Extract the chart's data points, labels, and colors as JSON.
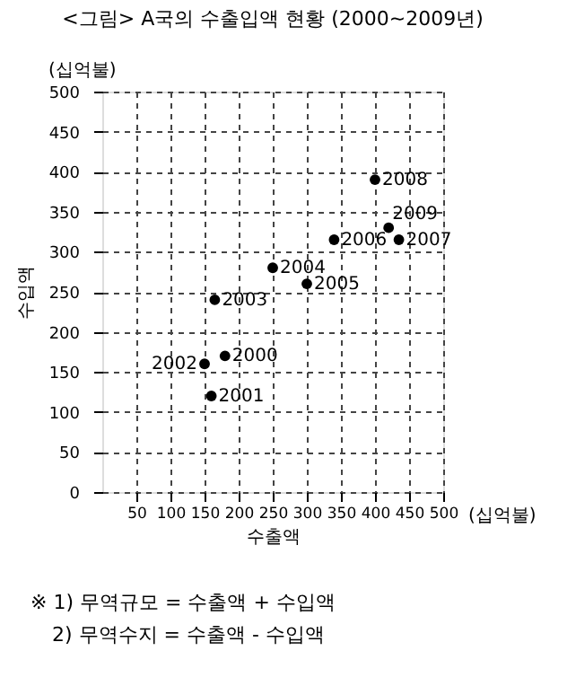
{
  "chart_data": {
    "type": "scatter",
    "title": "<그림> A국의 수출입액 현황 (2000~2009년)",
    "xlabel": "수출액",
    "ylabel": "수입액",
    "x": [
      180,
      160,
      150,
      165,
      250,
      300,
      340,
      435,
      400,
      420
    ],
    "series": [
      {
        "color": "#000000",
        "values": [
          170,
          120,
          160,
          240,
          280,
          260,
          315,
          315,
          390,
          330
        ]
      }
    ],
    "xlim": [
      0,
      500
    ],
    "xticks": [
      50,
      100,
      150,
      200,
      250,
      300,
      350,
      400,
      450,
      500
    ],
    "ylim": [
      0,
      500
    ],
    "yticks": [
      0,
      50,
      100,
      150,
      200,
      250,
      300,
      350,
      400,
      450,
      500
    ],
    "grid": true,
    "marker": "circle",
    "annotations": [
      {
        "text": "2000",
        "x": 180,
        "y": 170
      },
      {
        "text": "2001",
        "x": 160,
        "y": 120
      },
      {
        "text": "2002",
        "x": 150,
        "y": 160
      },
      {
        "text": "2003",
        "x": 165,
        "y": 240
      },
      {
        "text": "2004",
        "x": 250,
        "y": 280
      },
      {
        "text": "2005",
        "x": 300,
        "y": 260
      },
      {
        "text": "2006",
        "x": 340,
        "y": 315
      },
      {
        "text": "2007",
        "x": 435,
        "y": 315
      },
      {
        "text": "2008",
        "x": 400,
        "y": 390
      },
      {
        "text": "2009",
        "x": 420,
        "y": 330
      },
      "(십억불)",
      "(십억불)",
      "※ 1) 무역규모 = 수출액 + 수입액",
      "2) 무역수지 = 수출액 - 수입액"
    ]
  }
}
